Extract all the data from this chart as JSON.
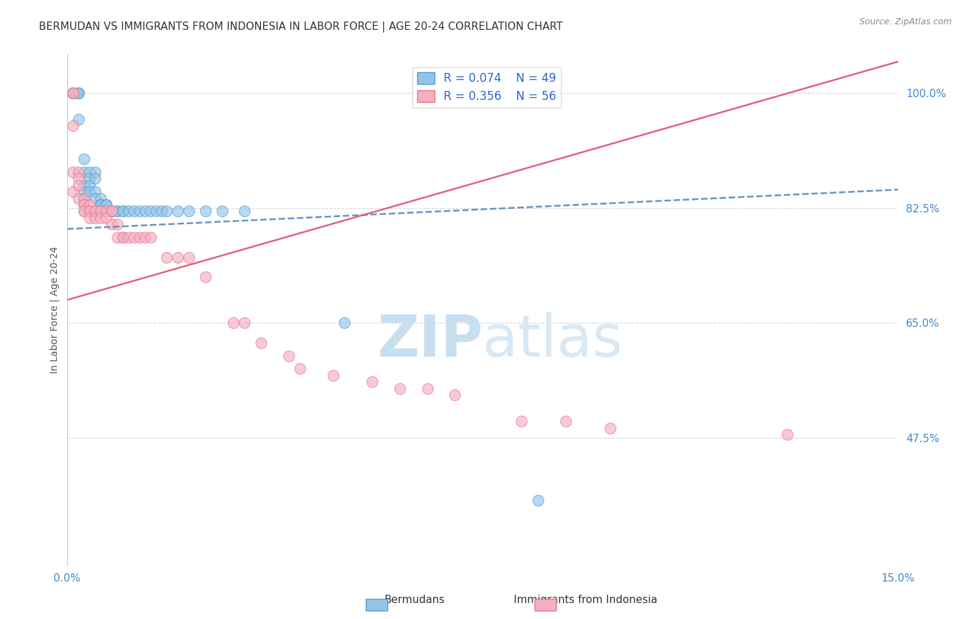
{
  "title": "BERMUDAN VS IMMIGRANTS FROM INDONESIA IN LABOR FORCE | AGE 20-24 CORRELATION CHART",
  "source_text": "Source: ZipAtlas.com",
  "ylabel": "In Labor Force | Age 20-24",
  "xlim": [
    0.0,
    0.15
  ],
  "ylim": [
    0.28,
    1.06
  ],
  "watermark_zip": "ZIP",
  "watermark_atlas": "atlas",
  "legend_r1": "R = 0.074",
  "legend_n1": "N = 49",
  "legend_r2": "R = 0.356",
  "legend_n2": "N = 56",
  "blue_color": "#92c5e8",
  "pink_color": "#f4afc0",
  "blue_edge": "#5599cc",
  "pink_edge": "#e87090",
  "line_blue_color": "#5588bb",
  "line_pink_color": "#e05070",
  "ytick_vals": [
    0.475,
    0.65,
    0.825,
    1.0
  ],
  "ytick_labels": [
    "47.5%",
    "65.0%",
    "82.5%",
    "100.0%"
  ],
  "background_color": "#ffffff",
  "grid_color": "#cccccc",
  "tick_color": "#4488cc",
  "title_color": "#333333",
  "title_fontsize": 11,
  "axis_label_color": "#555555",
  "source_color": "#888888",
  "source_fontsize": 9,
  "legend_fontsize": 12,
  "watermark_color_zip": "#c8dff0",
  "watermark_color_atlas": "#d8e8f4",
  "watermark_fontsize": 60,
  "line_blue_intercept": 0.793,
  "line_blue_slope": 0.4,
  "line_pink_intercept": 0.685,
  "line_pink_slope": 2.42,
  "bermudans_x": [
    0.001,
    0.001,
    0.001,
    0.002,
    0.002,
    0.002,
    0.002,
    0.003,
    0.003,
    0.003,
    0.003,
    0.003,
    0.004,
    0.004,
    0.004,
    0.004,
    0.005,
    0.005,
    0.005,
    0.005,
    0.006,
    0.006,
    0.006,
    0.006,
    0.006,
    0.007,
    0.007,
    0.007,
    0.008,
    0.008,
    0.009,
    0.009,
    0.01,
    0.01,
    0.011,
    0.012,
    0.013,
    0.014,
    0.015,
    0.016,
    0.017,
    0.018,
    0.02,
    0.022,
    0.025,
    0.028,
    0.032,
    0.05,
    0.085
  ],
  "bermudans_y": [
    1.0,
    1.0,
    1.0,
    1.0,
    1.0,
    1.0,
    0.96,
    0.9,
    0.88,
    0.86,
    0.85,
    0.84,
    0.88,
    0.87,
    0.86,
    0.85,
    0.88,
    0.87,
    0.85,
    0.84,
    0.84,
    0.83,
    0.83,
    0.83,
    0.83,
    0.83,
    0.83,
    0.83,
    0.82,
    0.82,
    0.82,
    0.82,
    0.82,
    0.82,
    0.82,
    0.82,
    0.82,
    0.82,
    0.82,
    0.82,
    0.82,
    0.82,
    0.82,
    0.82,
    0.82,
    0.82,
    0.82,
    0.65,
    0.38
  ],
  "indonesia_x": [
    0.001,
    0.001,
    0.001,
    0.001,
    0.001,
    0.002,
    0.002,
    0.002,
    0.002,
    0.003,
    0.003,
    0.003,
    0.003,
    0.003,
    0.004,
    0.004,
    0.004,
    0.004,
    0.005,
    0.005,
    0.005,
    0.006,
    0.006,
    0.006,
    0.007,
    0.007,
    0.008,
    0.008,
    0.008,
    0.009,
    0.009,
    0.01,
    0.01,
    0.011,
    0.012,
    0.013,
    0.014,
    0.015,
    0.018,
    0.02,
    0.022,
    0.025,
    0.03,
    0.032,
    0.035,
    0.04,
    0.042,
    0.048,
    0.055,
    0.06,
    0.065,
    0.07,
    0.082,
    0.09,
    0.098,
    0.13
  ],
  "indonesia_y": [
    1.0,
    1.0,
    0.95,
    0.88,
    0.85,
    0.88,
    0.87,
    0.86,
    0.84,
    0.84,
    0.83,
    0.83,
    0.82,
    0.82,
    0.83,
    0.82,
    0.82,
    0.81,
    0.82,
    0.82,
    0.81,
    0.82,
    0.82,
    0.81,
    0.82,
    0.81,
    0.82,
    0.82,
    0.8,
    0.8,
    0.78,
    0.78,
    0.78,
    0.78,
    0.78,
    0.78,
    0.78,
    0.78,
    0.75,
    0.75,
    0.75,
    0.72,
    0.65,
    0.65,
    0.62,
    0.6,
    0.58,
    0.57,
    0.56,
    0.55,
    0.55,
    0.54,
    0.5,
    0.5,
    0.49,
    0.48
  ]
}
